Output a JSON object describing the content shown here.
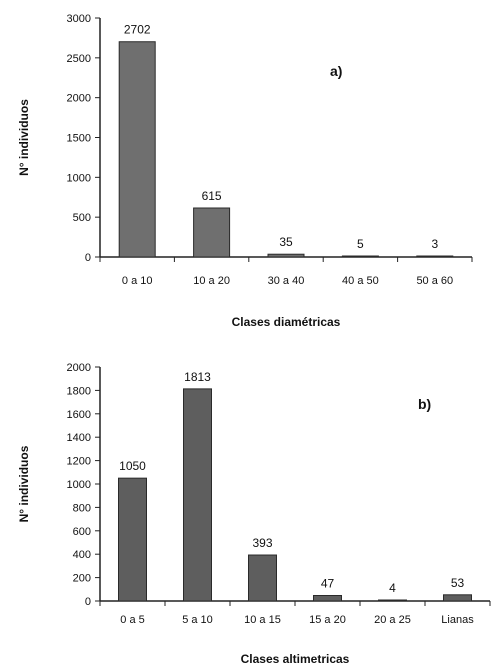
{
  "chart_data": [
    {
      "type": "bar",
      "panel_label": "a)",
      "categories": [
        "0 a 10",
        "10 a 20",
        "30 a 40",
        "40 a 50",
        "50 a 60"
      ],
      "values": [
        2702,
        615,
        35,
        5,
        3
      ],
      "data_labels": [
        "2702",
        "615",
        "35",
        "5",
        "3"
      ],
      "xlabel": "Clases diamétricas",
      "ylabel": "N° individuos",
      "ylim": [
        0,
        3000
      ],
      "yticks": [
        0,
        500,
        1000,
        1500,
        2000,
        2500,
        3000
      ],
      "grid": false,
      "bar_color": "#6f6f6f"
    },
    {
      "type": "bar",
      "panel_label": "b)",
      "categories": [
        "0 a 5",
        "5 a 10",
        "10 a 15",
        "15 a 20",
        "20 a 25",
        "Lianas"
      ],
      "values": [
        1050,
        1813,
        393,
        47,
        4,
        53
      ],
      "data_labels": [
        "1050",
        "1813",
        "393",
        "47",
        "4",
        "53"
      ],
      "xlabel": "Clases altimetricas",
      "ylabel": "N° individuos",
      "ylim": [
        0,
        2000
      ],
      "yticks": [
        0,
        200,
        400,
        600,
        800,
        1000,
        1200,
        1400,
        1600,
        1800,
        2000
      ],
      "grid": false,
      "bar_color": "#5e5e5e"
    }
  ]
}
